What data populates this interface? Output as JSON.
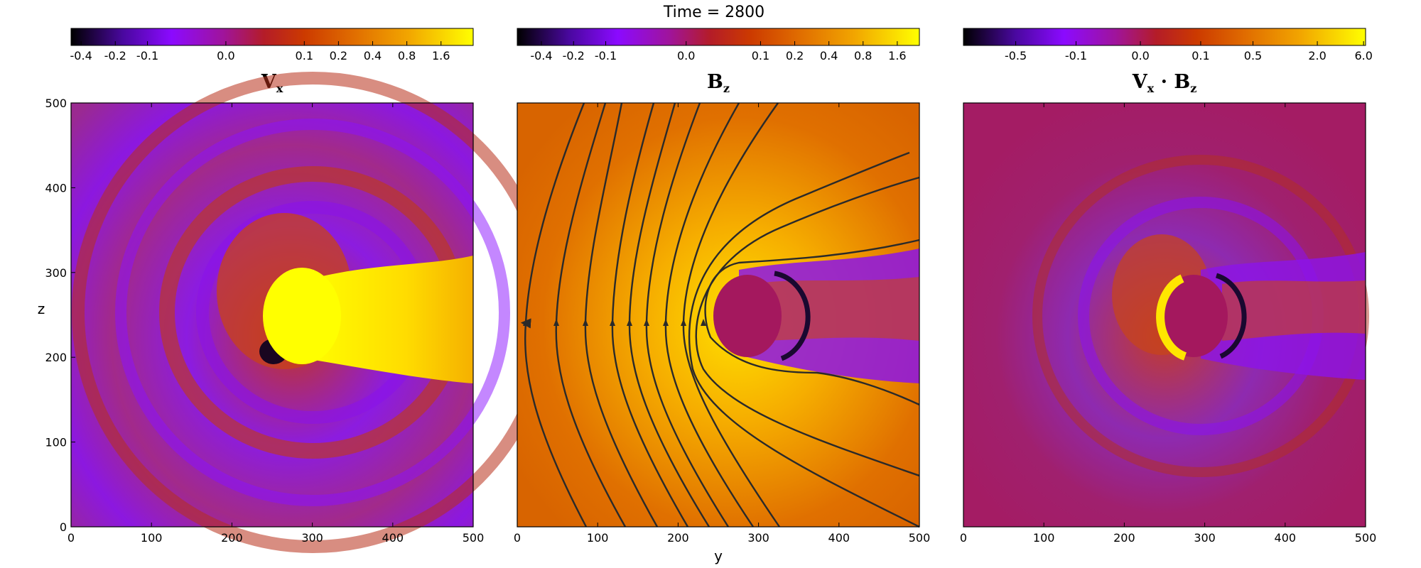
{
  "figure": {
    "title": "Time = 2800",
    "xlabel": "y",
    "ylabel": "z"
  },
  "chart_data": [
    {
      "type": "heatmap",
      "title_main": "V",
      "title_sub": "x",
      "x_range": [
        0,
        500
      ],
      "y_range": [
        0,
        500
      ],
      "x_ticks": [
        0,
        100,
        200,
        300,
        400,
        500
      ],
      "y_ticks": [
        0,
        100,
        200,
        300,
        400,
        500
      ],
      "colorbar_ticks": [
        "-0.4",
        "-0.2",
        "-0.1",
        "0.0",
        "0.1",
        "0.2",
        "0.4",
        "0.8",
        "1.6"
      ],
      "colormap": "gnuplot"
    },
    {
      "type": "heatmap",
      "title_main": "B",
      "title_sub": "z",
      "x_range": [
        0,
        500
      ],
      "y_range": [
        0,
        500
      ],
      "x_ticks": [
        0,
        100,
        200,
        300,
        400,
        500
      ],
      "colorbar_ticks": [
        "-0.4",
        "-0.2",
        "-0.1",
        "0.0",
        "0.1",
        "0.2",
        "0.4",
        "0.8",
        "1.6"
      ],
      "colormap": "gnuplot",
      "field_lines": true
    },
    {
      "type": "heatmap",
      "title_main": "V",
      "title_sep": " · ",
      "title_main2": "B",
      "title_sub": "x",
      "title_sub2": "z",
      "x_range": [
        0,
        500
      ],
      "y_range": [
        0,
        500
      ],
      "x_ticks": [
        0,
        100,
        200,
        300,
        400,
        500
      ],
      "colorbar_ticks": [
        "-0.5",
        "-0.1",
        "0.0",
        "0.1",
        "0.5",
        "2.0",
        "6.0"
      ],
      "colormap": "gnuplot"
    }
  ],
  "colors": {
    "cmap_stops": [
      "#000000",
      "#5a0aa8",
      "#8b0aff",
      "#9a14a0",
      "#b4141e",
      "#cc3a00",
      "#e06c00",
      "#f2a600",
      "#ffe200",
      "#ffff00"
    ],
    "field_line": "#2a2a2a"
  }
}
